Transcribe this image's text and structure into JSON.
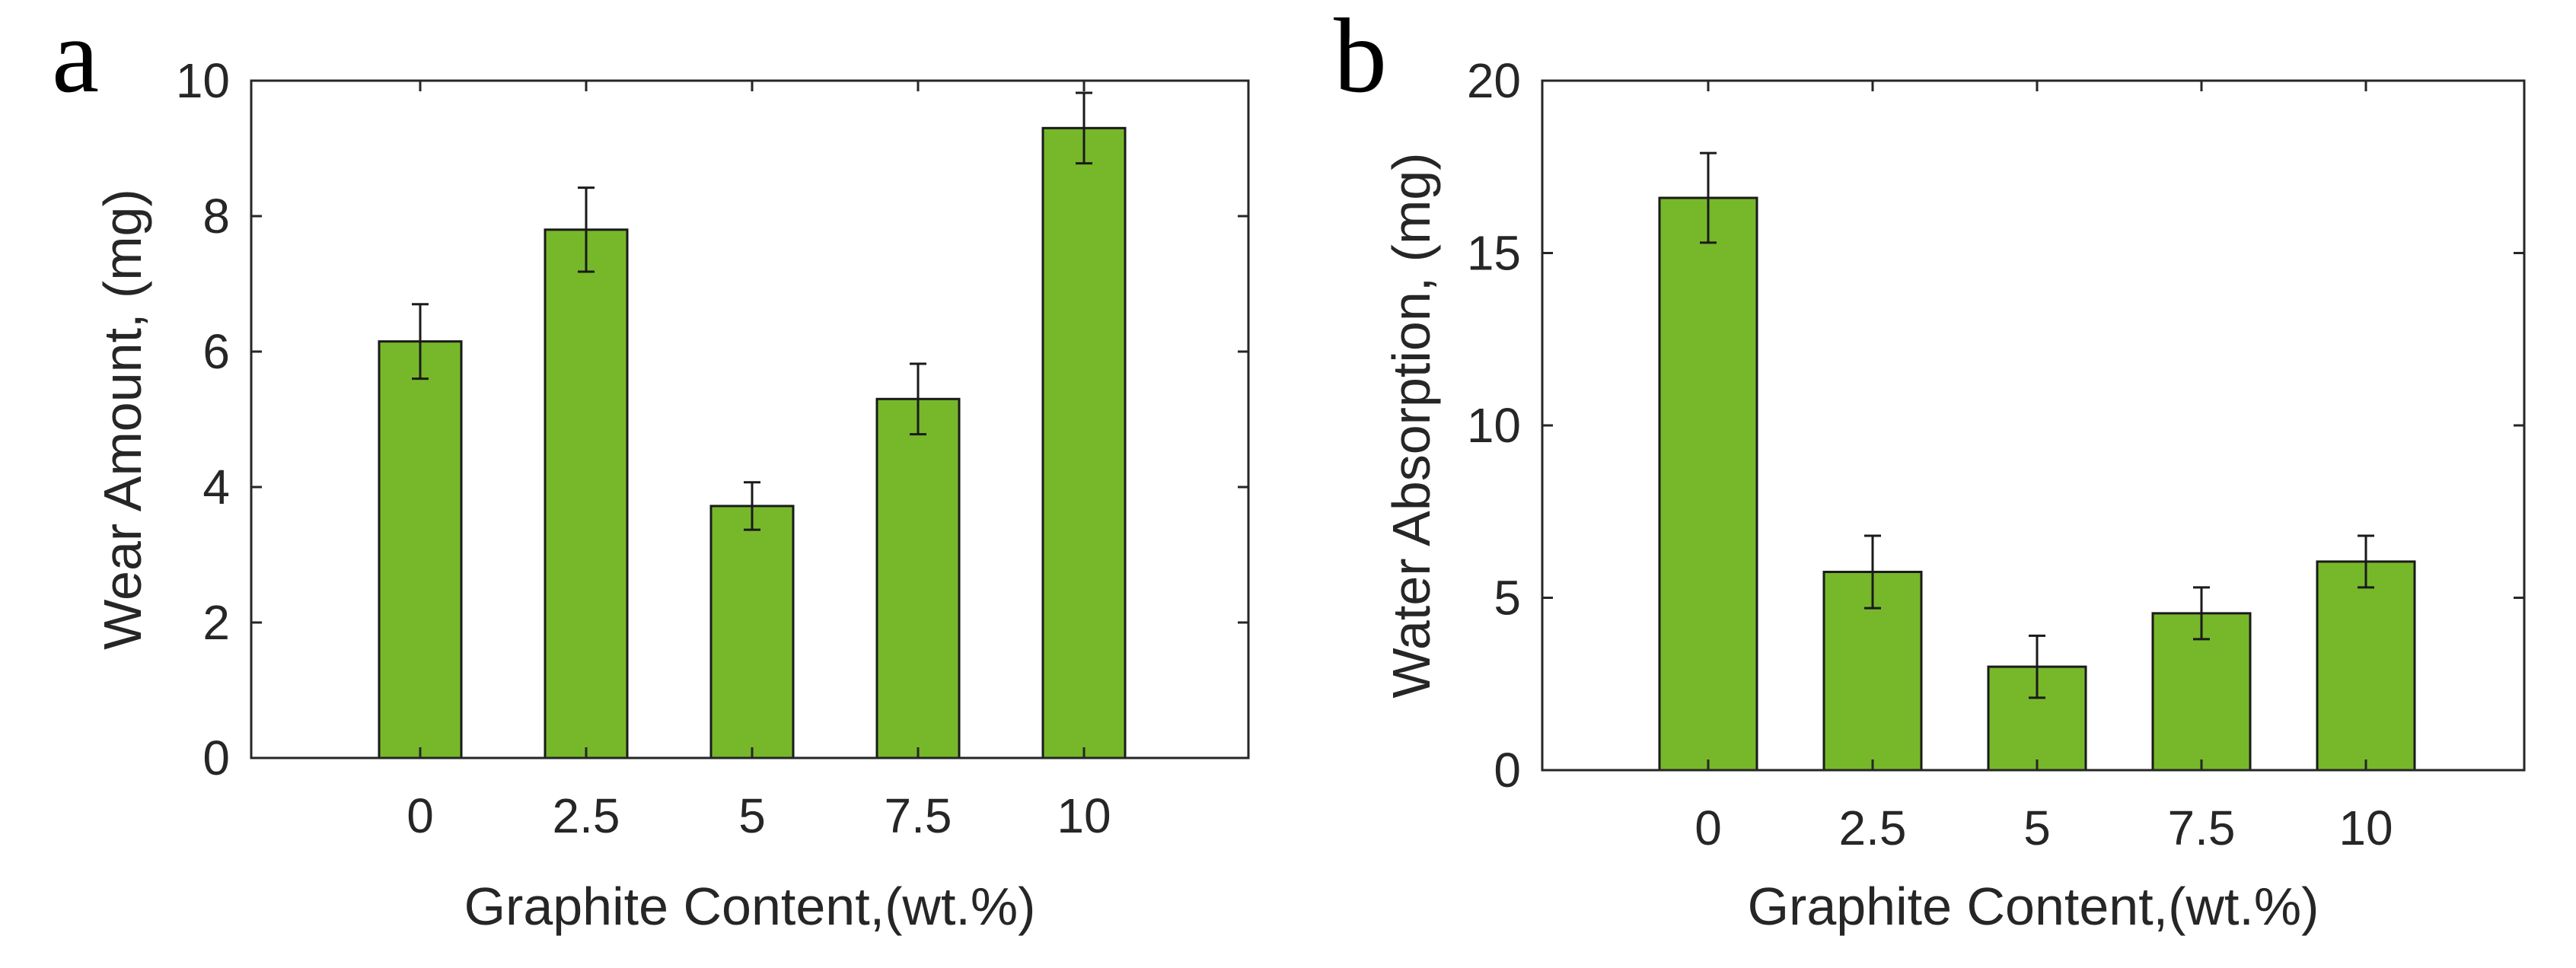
{
  "chart_data": [
    {
      "type": "bar",
      "panel_label": "a",
      "categories": [
        "0",
        "2.5",
        "5",
        "7.5",
        "10"
      ],
      "values": [
        6.15,
        7.8,
        3.72,
        5.3,
        9.3
      ],
      "errors": [
        0.55,
        0.62,
        0.35,
        0.52,
        0.52
      ],
      "xlabel": "Graphite Content,(wt.%)",
      "ylabel": "Wear Amount, (mg)",
      "ylim": [
        0,
        10
      ],
      "yticks": [
        0,
        2,
        4,
        6,
        8,
        10
      ],
      "ytick_labels": [
        "0",
        "2",
        "4",
        "6",
        "8",
        "10"
      ],
      "bar_color": "#77b82a",
      "grid": false
    },
    {
      "type": "bar",
      "panel_label": "b",
      "categories": [
        "0",
        "2.5",
        "5",
        "7.5",
        "10"
      ],
      "values": [
        16.6,
        5.75,
        3.0,
        4.55,
        6.05
      ],
      "errors": [
        1.3,
        1.05,
        0.9,
        0.75,
        0.75
      ],
      "xlabel": "Graphite Content,(wt.%)",
      "ylabel": "Water Absorption, (mg)",
      "ylim": [
        0,
        20
      ],
      "yticks": [
        0,
        5,
        10,
        15,
        20
      ],
      "ytick_labels": [
        "0",
        "5",
        "10",
        "15",
        "20"
      ],
      "bar_color": "#77b82a",
      "grid": false
    }
  ]
}
